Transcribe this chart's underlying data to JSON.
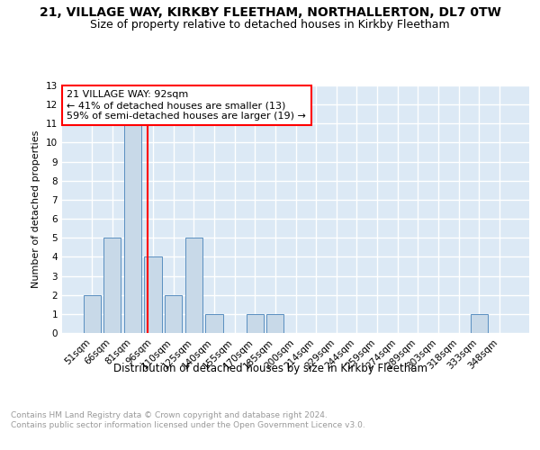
{
  "title_line1": "21, VILLAGE WAY, KIRKBY FLEETHAM, NORTHALLERTON, DL7 0TW",
  "title_line2": "Size of property relative to detached houses in Kirkby Fleetham",
  "xlabel": "Distribution of detached houses by size in Kirkby Fleetham",
  "ylabel": "Number of detached properties",
  "categories": [
    "51sqm",
    "66sqm",
    "81sqm",
    "96sqm",
    "110sqm",
    "125sqm",
    "140sqm",
    "155sqm",
    "170sqm",
    "185sqm",
    "200sqm",
    "214sqm",
    "229sqm",
    "244sqm",
    "259sqm",
    "274sqm",
    "289sqm",
    "303sqm",
    "318sqm",
    "333sqm",
    "348sqm"
  ],
  "values": [
    2,
    5,
    11,
    4,
    2,
    5,
    1,
    0,
    1,
    1,
    0,
    0,
    0,
    0,
    0,
    0,
    0,
    0,
    0,
    1,
    0
  ],
  "bar_color": "#c8d9e8",
  "bar_edge_color": "#5a8fc0",
  "red_line_x": 2.73,
  "annotation_text": "21 VILLAGE WAY: 92sqm\n← 41% of detached houses are smaller (13)\n59% of semi-detached houses are larger (19) →",
  "annotation_box_color": "white",
  "annotation_box_edge": "red",
  "ylim": [
    0,
    13
  ],
  "yticks": [
    0,
    1,
    2,
    3,
    4,
    5,
    6,
    7,
    8,
    9,
    10,
    11,
    12,
    13
  ],
  "footnote": "Contains HM Land Registry data © Crown copyright and database right 2024.\nContains public sector information licensed under the Open Government Licence v3.0.",
  "bg_color": "#dce9f5",
  "grid_color": "white",
  "title_fontsize": 10,
  "subtitle_fontsize": 9,
  "annotation_fontsize": 8,
  "ylabel_fontsize": 8,
  "xlabel_fontsize": 8.5,
  "tick_fontsize": 7.5,
  "footnote_fontsize": 6.5,
  "footnote_color": "#999999"
}
